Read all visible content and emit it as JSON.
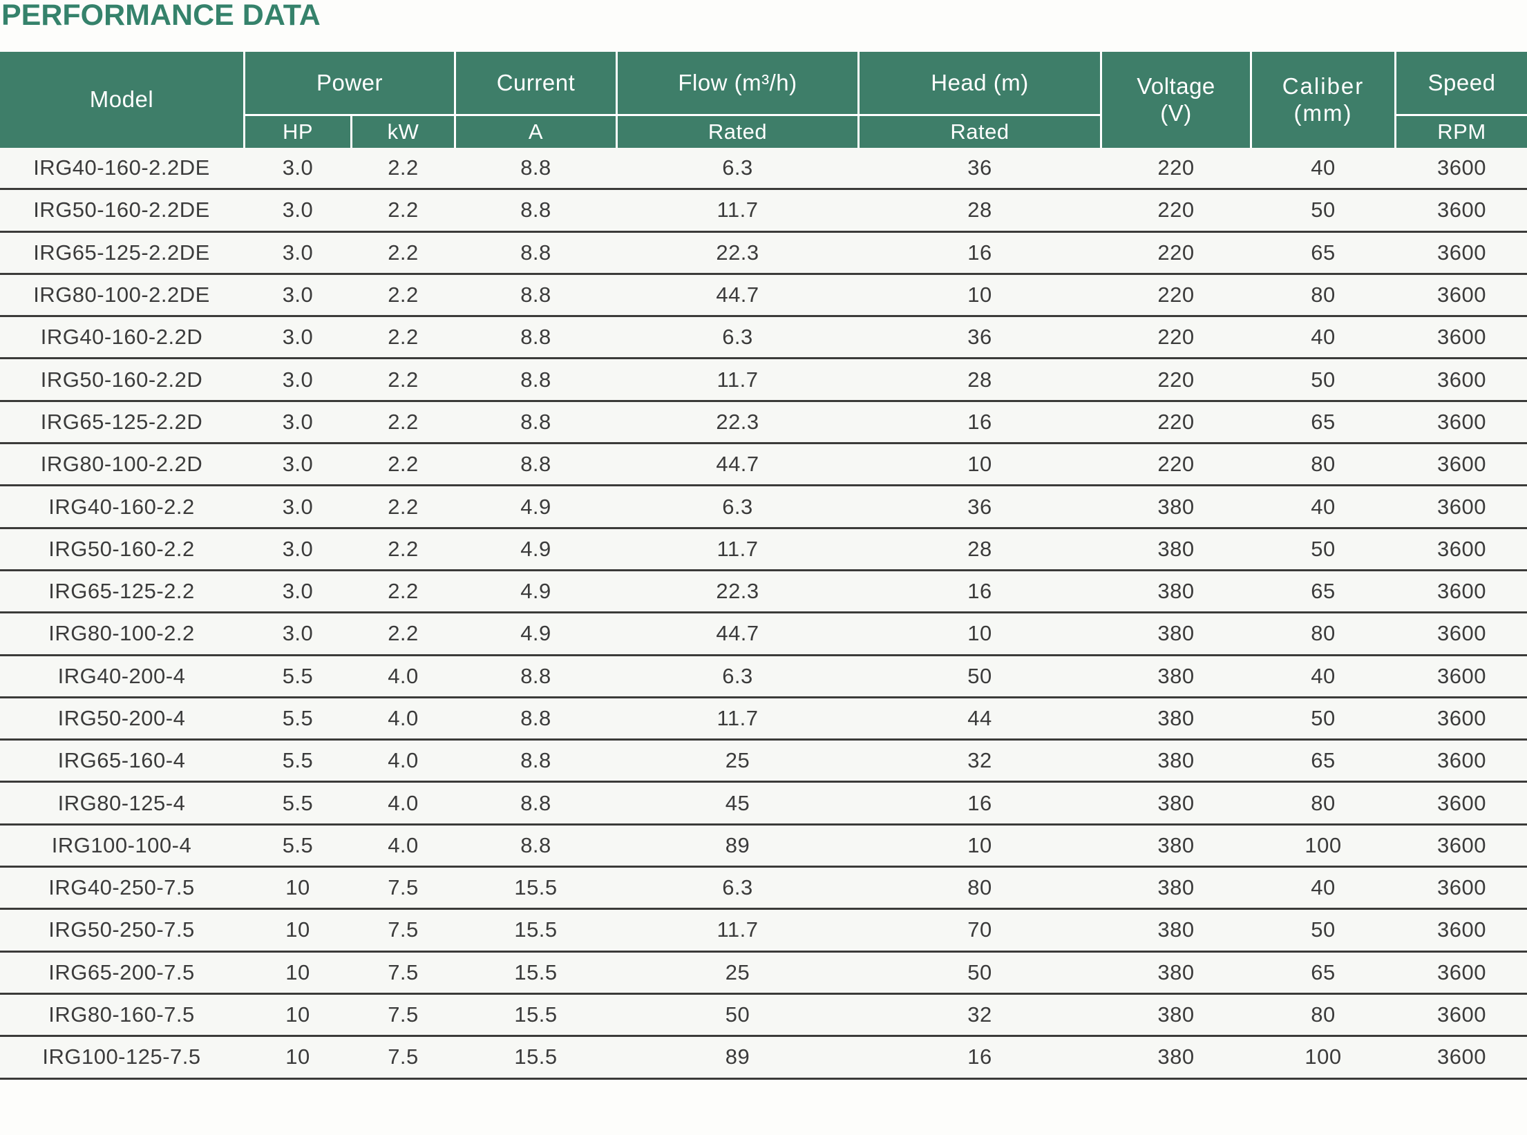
{
  "page": {
    "title": "PERFORMANCE DATA"
  },
  "colors": {
    "title_green": "#35826B",
    "header_green": "#3E7E69",
    "row_background": "#F7F8F5",
    "divider": "#3B3B39",
    "body_text": "#3B3B3B",
    "header_text": "#FFFFFF"
  },
  "table": {
    "header": {
      "model": "Model",
      "power": "Power",
      "hp": "HP",
      "kw": "kW",
      "current": "Current",
      "current_unit": "A",
      "flow": "Flow (m³/h)",
      "flow_sub": "Rated",
      "head": "Head (m)",
      "head_sub": "Rated",
      "voltage": "Voltage\n(V)",
      "caliber": "Caliber\n(mm)",
      "speed": "Speed",
      "speed_unit": "RPM"
    },
    "columns": [
      "Model",
      "Power HP",
      "Power kW",
      "Current A",
      "Flow (m³/h) Rated",
      "Head (m) Rated",
      "Voltage (V)",
      "Caliber (mm)",
      "Speed RPM"
    ],
    "rows": [
      [
        "IRG40-160-2.2DE",
        "3.0",
        "2.2",
        "8.8",
        "6.3",
        "36",
        "220",
        "40",
        "3600"
      ],
      [
        "IRG50-160-2.2DE",
        "3.0",
        "2.2",
        "8.8",
        "11.7",
        "28",
        "220",
        "50",
        "3600"
      ],
      [
        "IRG65-125-2.2DE",
        "3.0",
        "2.2",
        "8.8",
        "22.3",
        "16",
        "220",
        "65",
        "3600"
      ],
      [
        "IRG80-100-2.2DE",
        "3.0",
        "2.2",
        "8.8",
        "44.7",
        "10",
        "220",
        "80",
        "3600"
      ],
      [
        "IRG40-160-2.2D",
        "3.0",
        "2.2",
        "8.8",
        "6.3",
        "36",
        "220",
        "40",
        "3600"
      ],
      [
        "IRG50-160-2.2D",
        "3.0",
        "2.2",
        "8.8",
        "11.7",
        "28",
        "220",
        "50",
        "3600"
      ],
      [
        "IRG65-125-2.2D",
        "3.0",
        "2.2",
        "8.8",
        "22.3",
        "16",
        "220",
        "65",
        "3600"
      ],
      [
        "IRG80-100-2.2D",
        "3.0",
        "2.2",
        "8.8",
        "44.7",
        "10",
        "220",
        "80",
        "3600"
      ],
      [
        "IRG40-160-2.2",
        "3.0",
        "2.2",
        "4.9",
        "6.3",
        "36",
        "380",
        "40",
        "3600"
      ],
      [
        "IRG50-160-2.2",
        "3.0",
        "2.2",
        "4.9",
        "11.7",
        "28",
        "380",
        "50",
        "3600"
      ],
      [
        "IRG65-125-2.2",
        "3.0",
        "2.2",
        "4.9",
        "22.3",
        "16",
        "380",
        "65",
        "3600"
      ],
      [
        "IRG80-100-2.2",
        "3.0",
        "2.2",
        "4.9",
        "44.7",
        "10",
        "380",
        "80",
        "3600"
      ],
      [
        "IRG40-200-4",
        "5.5",
        "4.0",
        "8.8",
        "6.3",
        "50",
        "380",
        "40",
        "3600"
      ],
      [
        "IRG50-200-4",
        "5.5",
        "4.0",
        "8.8",
        "11.7",
        "44",
        "380",
        "50",
        "3600"
      ],
      [
        "IRG65-160-4",
        "5.5",
        "4.0",
        "8.8",
        "25",
        "32",
        "380",
        "65",
        "3600"
      ],
      [
        "IRG80-125-4",
        "5.5",
        "4.0",
        "8.8",
        "45",
        "16",
        "380",
        "80",
        "3600"
      ],
      [
        "IRG100-100-4",
        "5.5",
        "4.0",
        "8.8",
        "89",
        "10",
        "380",
        "100",
        "3600"
      ],
      [
        "IRG40-250-7.5",
        "10",
        "7.5",
        "15.5",
        "6.3",
        "80",
        "380",
        "40",
        "3600"
      ],
      [
        "IRG50-250-7.5",
        "10",
        "7.5",
        "15.5",
        "11.7",
        "70",
        "380",
        "50",
        "3600"
      ],
      [
        "IRG65-200-7.5",
        "10",
        "7.5",
        "15.5",
        "25",
        "50",
        "380",
        "65",
        "3600"
      ],
      [
        "IRG80-160-7.5",
        "10",
        "7.5",
        "15.5",
        "50",
        "32",
        "380",
        "80",
        "3600"
      ],
      [
        "IRG100-125-7.5",
        "10",
        "7.5",
        "15.5",
        "89",
        "16",
        "380",
        "100",
        "3600"
      ]
    ]
  }
}
